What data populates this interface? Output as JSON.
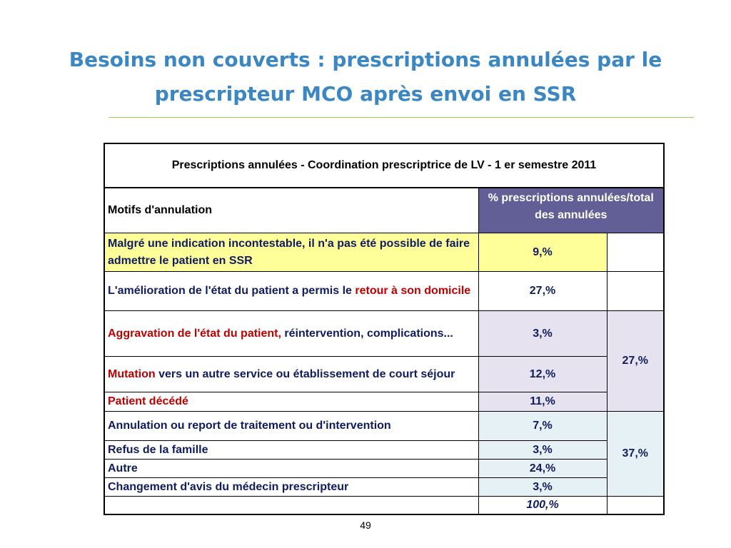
{
  "slide": {
    "title_line1": "Besoins non couverts : prescriptions annulées par le",
    "title_line2": "prescripteur MCO après envoi en SSR",
    "page_number": "49"
  },
  "table": {
    "caption": "Prescriptions annulées - Coordination prescriptrice de LV - 1 er semestre 2011",
    "header_reason": "Motifs d'annulation",
    "header_pct": "% prescriptions annulées/total des annulées",
    "rows": [
      {
        "reason": "Malgré une indication incontestable, il n'a pas été possible de faire admettre le patient en SSR",
        "pct": "9,%"
      },
      {
        "reason_plain": "L'amélioration de l'état du patient a permis le ",
        "reason_red": "retour à son domicile",
        "pct": "27,%"
      },
      {
        "reason_red": "Aggravation de l'état du patient,",
        "reason_plain": " réintervention, complications...",
        "pct": "3,%"
      },
      {
        "reason_red": "Mutation",
        "reason_plain": " vers un autre service ou établissement de court séjour",
        "pct": "12,%"
      },
      {
        "reason_red": "Patient décédé",
        "pct": "11,%"
      },
      {
        "reason": "Annulation ou report de traitement ou d'intervention",
        "pct": "7,%"
      },
      {
        "reason": "Refus de la famille",
        "pct": "3,%"
      },
      {
        "reason": "Autre",
        "pct": "24,%"
      },
      {
        "reason": "Changement d'avis du médecin prescripteur",
        "pct": "3,%"
      }
    ],
    "group_totals": [
      "27,%",
      "37,%"
    ],
    "grand_total": "100,%"
  },
  "colors": {
    "title": "#3a87c4",
    "rule": "#9ccd5c",
    "header_bg": "#625f96",
    "row_yellow": "#ffff99",
    "row_lavender": "#e7e2ef",
    "row_blue": "#e5f1f4",
    "text_navy": "#101c60",
    "text_red": "#c00000"
  }
}
